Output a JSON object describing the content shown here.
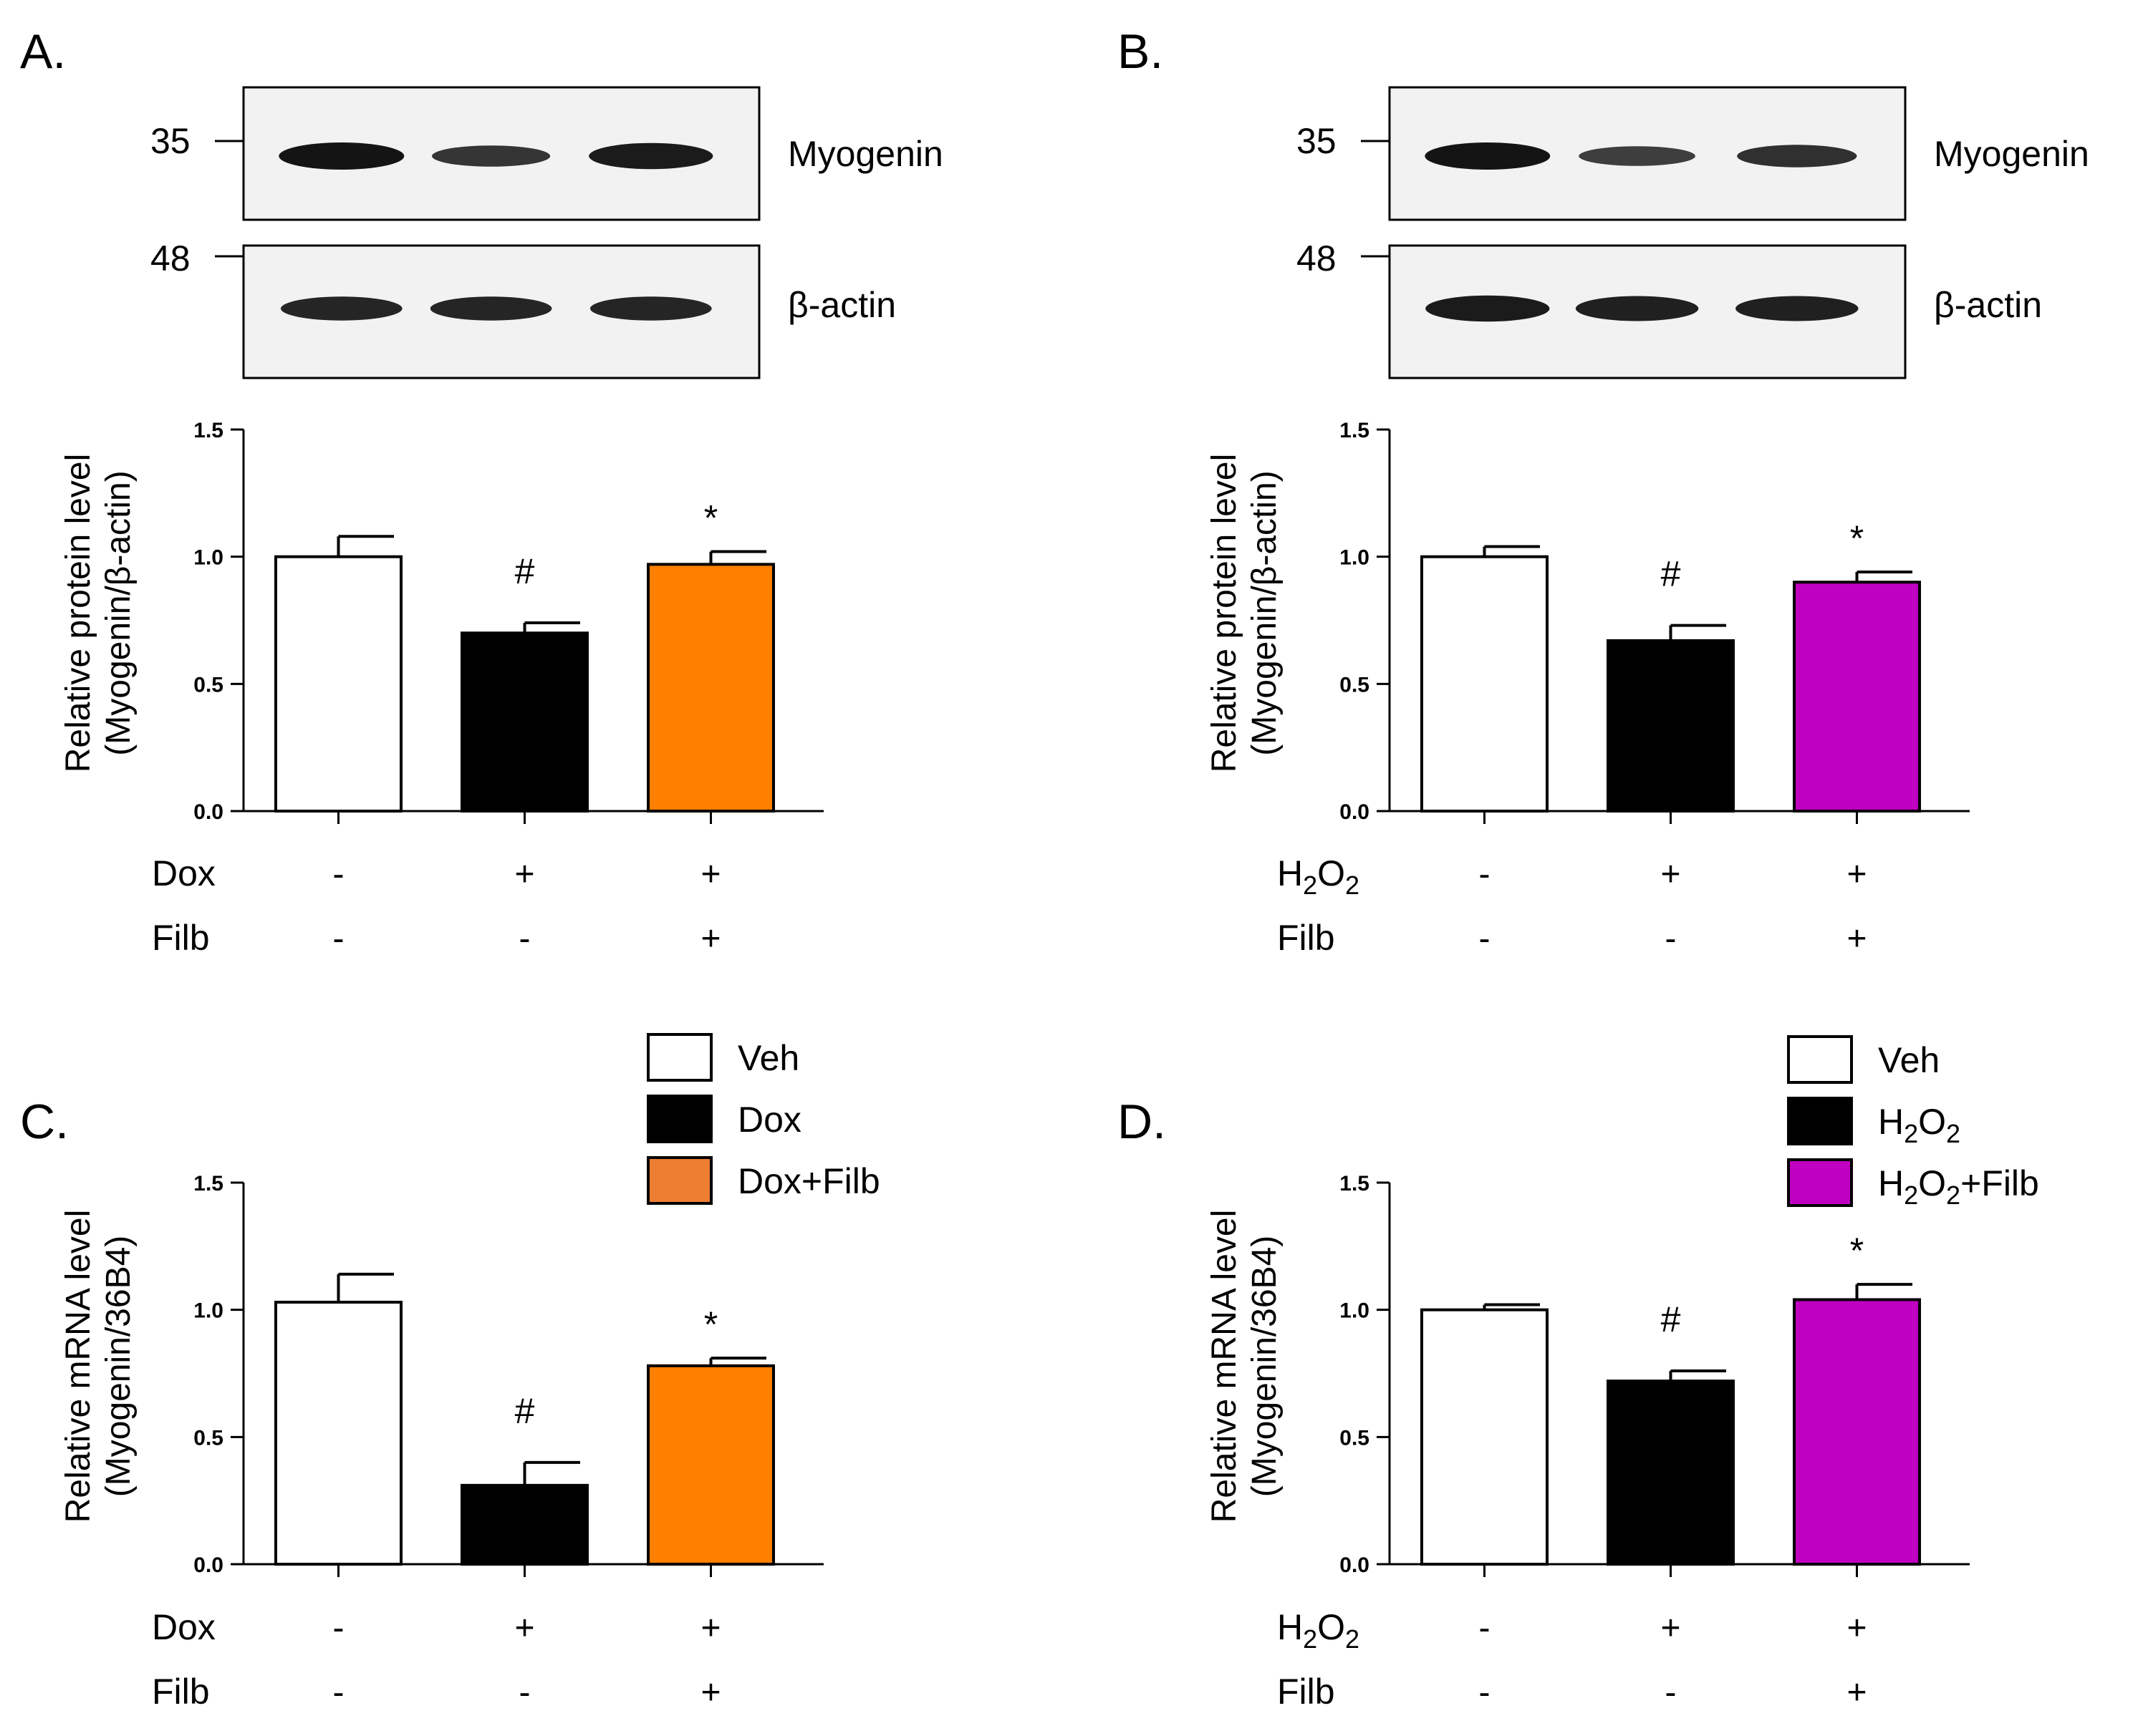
{
  "colors": {
    "veh": "#ffffff",
    "treat": "#000000",
    "dox_filb": "#ff7f00",
    "dox_filb_legend": "#ed7d31",
    "h2o2_filb": "#c000c0",
    "axis": "#000000",
    "band": "#141414",
    "blot_bg": "#f2f2f2"
  },
  "panels": {
    "A": {
      "label": "A.",
      "blots": [
        {
          "marker": "35",
          "protein": "Myogenin",
          "band_strength": [
            1.0,
            0.72,
            0.95
          ]
        },
        {
          "marker": "48",
          "protein": "β-actin",
          "band_strength": [
            0.85,
            0.85,
            0.85
          ]
        }
      ]
    },
    "B": {
      "label": "B.",
      "blots": [
        {
          "marker": "35",
          "protein": "Myogenin",
          "band_strength": [
            1.0,
            0.65,
            0.78
          ]
        },
        {
          "marker": "48",
          "protein": "β-actin",
          "band_strength": [
            0.95,
            0.9,
            0.9
          ]
        }
      ]
    },
    "C": {
      "label": "C."
    },
    "D": {
      "label": "D."
    }
  },
  "legends": {
    "C": [
      {
        "label": "Veh",
        "color_key": "veh"
      },
      {
        "label": "Dox",
        "color_key": "treat"
      },
      {
        "label": "Dox+Filb",
        "color_key": "dox_filb_legend"
      }
    ],
    "D": [
      {
        "label": "Veh",
        "color_key": "veh"
      },
      {
        "label": "H2O2",
        "color_key": "treat",
        "subscript": true
      },
      {
        "label": "H2O2+Filb",
        "color_key": "h2o2_filb",
        "subscript": true
      }
    ]
  },
  "chart_data": [
    {
      "panel": "A",
      "type": "bar",
      "title": "",
      "ylabel": [
        "Relative protein level",
        "(Myogenin/β-actin)"
      ],
      "ylim": [
        0,
        1.5
      ],
      "yticks": [
        "0.0",
        "0.5",
        "1.0",
        "1.5"
      ],
      "values": [
        1.0,
        0.7,
        0.97
      ],
      "errors": [
        0.08,
        0.04,
        0.05
      ],
      "significance": [
        "",
        "#",
        "*"
      ],
      "bar_color_keys": [
        "veh",
        "treat",
        "dox_filb"
      ],
      "treatments": [
        {
          "name": "Dox",
          "signs": [
            "-",
            "+",
            "+"
          ]
        },
        {
          "name": "Filb",
          "signs": [
            "-",
            "-",
            "+"
          ]
        }
      ]
    },
    {
      "panel": "B",
      "type": "bar",
      "title": "",
      "ylabel": [
        "Relative protein level",
        "(Myogenin/β-actin)"
      ],
      "ylim": [
        0,
        1.5
      ],
      "yticks": [
        "0.0",
        "0.5",
        "1.0",
        "1.5"
      ],
      "values": [
        1.0,
        0.67,
        0.9
      ],
      "errors": [
        0.04,
        0.06,
        0.04
      ],
      "significance": [
        "",
        "#",
        "*"
      ],
      "bar_color_keys": [
        "veh",
        "treat",
        "h2o2_filb"
      ],
      "treatments": [
        {
          "name": "H2O2",
          "signs": [
            "-",
            "+",
            "+"
          ]
        },
        {
          "name": "Filb",
          "signs": [
            "-",
            "-",
            "+"
          ]
        }
      ]
    },
    {
      "panel": "C",
      "type": "bar",
      "title": "",
      "ylabel": [
        "Relative mRNA level",
        "(Myogenin/36B4)"
      ],
      "ylim": [
        0,
        1.5
      ],
      "yticks": [
        "0.0",
        "0.5",
        "1.0",
        "1.5"
      ],
      "values": [
        1.03,
        0.31,
        0.78
      ],
      "errors": [
        0.11,
        0.09,
        0.03
      ],
      "significance": [
        "",
        "#",
        "*"
      ],
      "bar_color_keys": [
        "veh",
        "treat",
        "dox_filb"
      ],
      "treatments": [
        {
          "name": "Dox",
          "signs": [
            "-",
            "+",
            "+"
          ]
        },
        {
          "name": "Filb",
          "signs": [
            "-",
            "-",
            "+"
          ]
        }
      ]
    },
    {
      "panel": "D",
      "type": "bar",
      "title": "",
      "ylabel": [
        "Relative mRNA level",
        "(Myogenin/36B4)"
      ],
      "ylim": [
        0,
        1.5
      ],
      "yticks": [
        "0.0",
        "0.5",
        "1.0",
        "1.5"
      ],
      "values": [
        1.0,
        0.72,
        1.04
      ],
      "errors": [
        0.02,
        0.04,
        0.06
      ],
      "significance": [
        "",
        "#",
        "*"
      ],
      "bar_color_keys": [
        "veh",
        "treat",
        "h2o2_filb"
      ],
      "treatments": [
        {
          "name": "H2O2",
          "signs": [
            "-",
            "+",
            "+"
          ]
        },
        {
          "name": "Filb",
          "signs": [
            "-",
            "-",
            "+"
          ]
        }
      ]
    }
  ]
}
